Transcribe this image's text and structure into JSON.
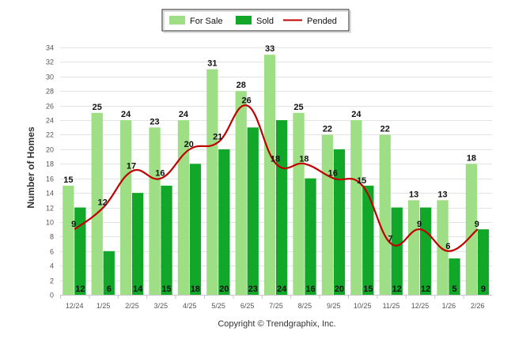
{
  "chart_data": {
    "type": "bar",
    "ylabel": "Number of Homes",
    "ylim": [
      0,
      34
    ],
    "ytick_step": 2,
    "grid": true,
    "legend_position": "top-center",
    "categories": [
      "12/24",
      "1/25",
      "2/25",
      "3/25",
      "4/25",
      "5/25",
      "6/25",
      "7/25",
      "8/25",
      "9/25",
      "10/25",
      "11/25",
      "12/25",
      "1/26",
      "2/26"
    ],
    "series": [
      {
        "name": "For Sale",
        "kind": "bar",
        "color": "#9edf86",
        "values": [
          15,
          25,
          24,
          23,
          24,
          31,
          28,
          33,
          25,
          22,
          24,
          22,
          13,
          13,
          18
        ]
      },
      {
        "name": "Sold",
        "kind": "bar",
        "color": "#11a82a",
        "values": [
          12,
          6,
          14,
          15,
          18,
          20,
          23,
          24,
          16,
          20,
          15,
          12,
          12,
          5,
          9
        ]
      },
      {
        "name": "Pended",
        "kind": "line",
        "color": "#c00000",
        "values": [
          9,
          12,
          17,
          16,
          20,
          21,
          26,
          18,
          18,
          16,
          15,
          7,
          9,
          6,
          9
        ]
      }
    ]
  },
  "copyright": "Copyright © Trendgraphix, Inc."
}
